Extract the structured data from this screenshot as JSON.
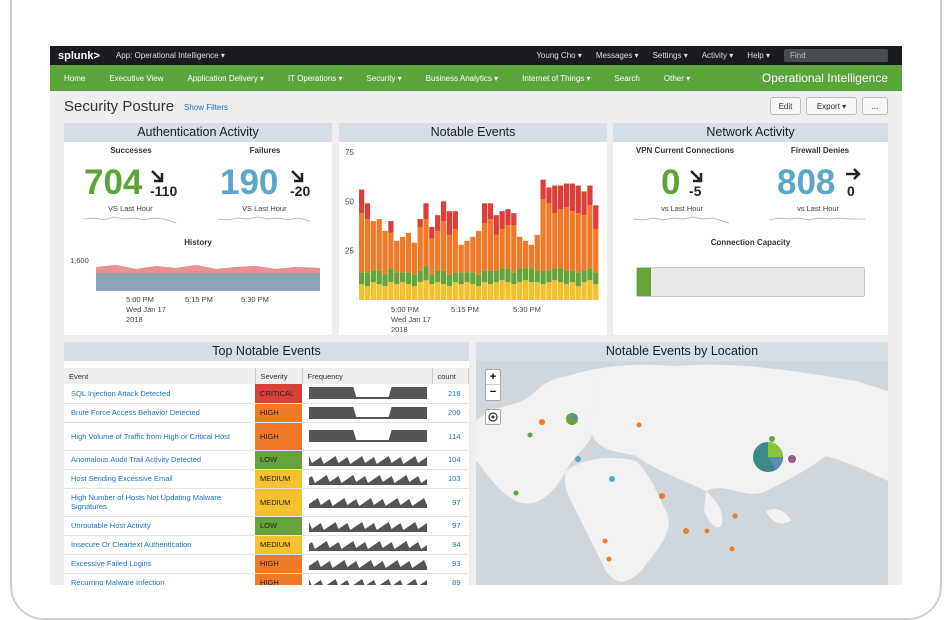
{
  "topbar": {
    "logo": "splunk>",
    "app": "App: Operational Intelligence ▾",
    "user": "Young Cho ▾",
    "messages": "Messages ▾",
    "settings": "Settings ▾",
    "activity": "Activity ▾",
    "help": "Help ▾",
    "find_placeholder": "Find"
  },
  "nav": {
    "items": [
      "Home",
      "Executive View",
      "Application Delivery ▾",
      "IT Operations ▾",
      "Security ▾",
      "Business Analytics ▾",
      "Internet of Things ▾",
      "Search",
      "Other ▾"
    ],
    "brand": "Operational Intelligence"
  },
  "page": {
    "title": "Security Posture",
    "show_filters": "Show Filters",
    "edit": "Edit",
    "export": "Export ▾",
    "more": "..."
  },
  "auth": {
    "title": "Authentication Activity",
    "successes_label": "Successes",
    "successes": "704",
    "successes_delta": "-110",
    "failures_label": "Failures",
    "failures": "190",
    "failures_delta": "-20",
    "vs1": "VS Last Hour",
    "vs2": "VS Last Hour",
    "history": "History",
    "ytick": "1,600",
    "xticks": [
      "5:00 PM",
      "5:15 PM",
      "5:30 PM"
    ],
    "xdate": "Wed Jan 17",
    "xyear": "2018"
  },
  "notable": {
    "title": "Notable Events",
    "yticks": [
      "75",
      "50",
      "25"
    ],
    "xticks": [
      "5:00 PM",
      "5:15 PM",
      "5:30 PM"
    ],
    "xdate": "Wed Jan 17",
    "xyear": "2018"
  },
  "network": {
    "title": "Network Activity",
    "vpn_label": "VPN Current Connections",
    "vpn": "0",
    "vpn_delta": "-5",
    "fw_label": "Firewall Denies",
    "fw": "808",
    "fw_delta": "0",
    "vs1": "vs Last Hour",
    "vs2": "vs Last Hour",
    "capacity_label": "Connection Capacity",
    "capacity_fraction": 0.06
  },
  "top": {
    "title": "Top Notable Events",
    "headers": [
      "Event",
      "Severity",
      "Frequency",
      "count"
    ],
    "rows": [
      {
        "event": "SQL Injection Attack Detected",
        "severity": "CRITICAL",
        "count": "218"
      },
      {
        "event": "Brute Force Access Behavior Detected",
        "severity": "HIGH",
        "count": "200"
      },
      {
        "event": "High Volume of Traffic from High or Critical Host",
        "severity": "HIGH",
        "count": "114"
      },
      {
        "event": "Anomalous Audit Trail Activity Detected",
        "severity": "LOW",
        "count": "104"
      },
      {
        "event": "Host Sending Excessive Email",
        "severity": "MEDIUM",
        "count": "103"
      },
      {
        "event": "High Number of Hosts Not Updating Malware Signatures",
        "severity": "MEDIUM",
        "count": "97"
      },
      {
        "event": "Unroutable Host Activity",
        "severity": "LOW",
        "count": "97"
      },
      {
        "event": "Insecure Or Cleartext Authentication",
        "severity": "MEDIUM",
        "count": "94"
      },
      {
        "event": "Excessive Failed Logins",
        "severity": "HIGH",
        "count": "93"
      },
      {
        "event": "Recurring Malware Infection",
        "severity": "HIGH",
        "count": "89"
      }
    ]
  },
  "map": {
    "title": "Notable Events by Location",
    "zoom_in": "+",
    "zoom_out": "−"
  },
  "colors": {
    "green": "#5ba43a",
    "blue": "#5aa7c9",
    "critical": "#d9403a",
    "high": "#ef7b2a",
    "medium": "#f5c02b",
    "low": "#66a33b"
  },
  "chart_data": {
    "type": "bar",
    "title": "Notable Events",
    "ylim": [
      0,
      75
    ],
    "series": [
      {
        "values": [
          8,
          7,
          9,
          8,
          7,
          9,
          8,
          9,
          8,
          7,
          9,
          10,
          8,
          9,
          8,
          7,
          9,
          8,
          9,
          8,
          7,
          9,
          8,
          9,
          10,
          9,
          8,
          9,
          10,
          9,
          9,
          8,
          9,
          10,
          9,
          8,
          9,
          7,
          9,
          10,
          8
        ]
      },
      {
        "values": [
          6,
          7,
          6,
          7,
          6,
          7,
          6,
          5,
          6,
          6,
          6,
          7,
          5,
          6,
          7,
          6,
          5,
          6,
          5,
          6,
          6,
          6,
          7,
          6,
          6,
          7,
          6,
          7,
          6,
          7,
          6,
          7,
          6,
          6,
          7,
          7,
          6,
          7,
          6,
          6,
          6
        ]
      },
      {
        "values": [
          30,
          27,
          25,
          26,
          22,
          18,
          16,
          18,
          20,
          16,
          22,
          24,
          18,
          20,
          25,
          20,
          22,
          14,
          16,
          18,
          22,
          24,
          26,
          18,
          20,
          22,
          24,
          16,
          14,
          12,
          18,
          36,
          34,
          28,
          30,
          32,
          30,
          30,
          28,
          32,
          22
        ]
      },
      {
        "values": [
          12,
          8,
          0,
          0,
          0,
          6,
          0,
          0,
          0,
          0,
          4,
          8,
          6,
          8,
          10,
          12,
          9,
          0,
          0,
          0,
          0,
          10,
          8,
          10,
          9,
          8,
          6,
          0,
          0,
          0,
          0,
          10,
          8,
          14,
          12,
          12,
          14,
          14,
          12,
          10,
          12
        ]
      }
    ]
  }
}
